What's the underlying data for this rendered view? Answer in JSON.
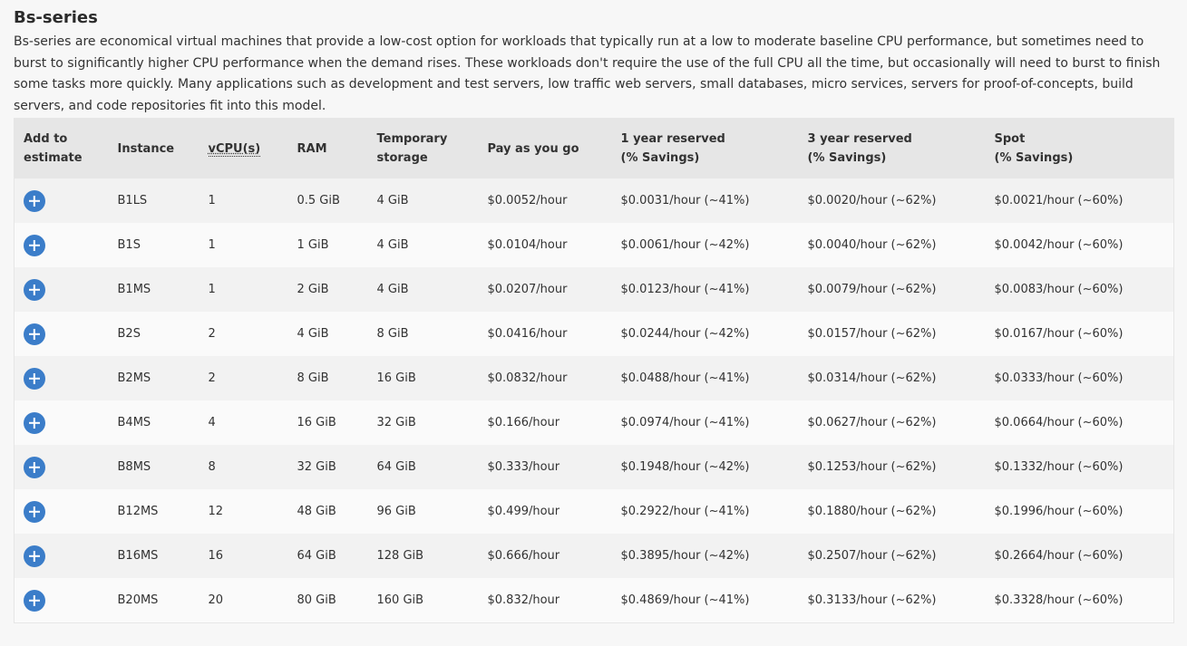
{
  "section": {
    "title": "Bs-series",
    "description": "Bs-series are economical virtual machines that provide a low-cost option for workloads that typically run at a low to moderate baseline CPU performance, but sometimes need to burst to significantly higher CPU performance when the demand rises. These workloads don't require the use of the full CPU all the time, but occasionally will need to burst to finish some tasks more quickly. Many applications such as development and test servers, low traffic web servers, small databases, micro services, servers for proof-of-concepts, build servers, and code repositories fit into this model."
  },
  "table": {
    "headers": {
      "add_line1": "Add to",
      "add_line2": "estimate",
      "instance": "Instance",
      "vcpu": "vCPU(s)",
      "ram": "RAM",
      "storage_line1": "Temporary",
      "storage_line2": "storage",
      "payg": "Pay as you go",
      "one_year_line1": "1 year reserved",
      "one_year_line2": "(% Savings)",
      "three_year_line1": "3 year reserved",
      "three_year_line2": "(% Savings)",
      "spot_line1": "Spot",
      "spot_line2": "(% Savings)"
    },
    "add_icon": "plus-circle-icon",
    "accent_color": "#3b7dc9",
    "rows": [
      {
        "instance": "B1LS",
        "vcpu": "1",
        "ram": "0.5 GiB",
        "storage": "4 GiB",
        "payg": "$0.0052/hour",
        "one_year": "$0.0031/hour (~41%)",
        "three_year": "$0.0020/hour (~62%)",
        "spot": "$0.0021/hour (~60%)"
      },
      {
        "instance": "B1S",
        "vcpu": "1",
        "ram": "1 GiB",
        "storage": "4 GiB",
        "payg": "$0.0104/hour",
        "one_year": "$0.0061/hour (~42%)",
        "three_year": "$0.0040/hour (~62%)",
        "spot": "$0.0042/hour (~60%)"
      },
      {
        "instance": "B1MS",
        "vcpu": "1",
        "ram": "2 GiB",
        "storage": "4 GiB",
        "payg": "$0.0207/hour",
        "one_year": "$0.0123/hour (~41%)",
        "three_year": "$0.0079/hour (~62%)",
        "spot": "$0.0083/hour (~60%)"
      },
      {
        "instance": "B2S",
        "vcpu": "2",
        "ram": "4 GiB",
        "storage": "8 GiB",
        "payg": "$0.0416/hour",
        "one_year": "$0.0244/hour (~42%)",
        "three_year": "$0.0157/hour (~62%)",
        "spot": "$0.0167/hour (~60%)"
      },
      {
        "instance": "B2MS",
        "vcpu": "2",
        "ram": "8 GiB",
        "storage": "16 GiB",
        "payg": "$0.0832/hour",
        "one_year": "$0.0488/hour (~41%)",
        "three_year": "$0.0314/hour (~62%)",
        "spot": "$0.0333/hour (~60%)"
      },
      {
        "instance": "B4MS",
        "vcpu": "4",
        "ram": "16 GiB",
        "storage": "32 GiB",
        "payg": "$0.166/hour",
        "one_year": "$0.0974/hour (~41%)",
        "three_year": "$0.0627/hour (~62%)",
        "spot": "$0.0664/hour (~60%)"
      },
      {
        "instance": "B8MS",
        "vcpu": "8",
        "ram": "32 GiB",
        "storage": "64 GiB",
        "payg": "$0.333/hour",
        "one_year": "$0.1948/hour (~42%)",
        "three_year": "$0.1253/hour (~62%)",
        "spot": "$0.1332/hour (~60%)"
      },
      {
        "instance": "B12MS",
        "vcpu": "12",
        "ram": "48 GiB",
        "storage": "96 GiB",
        "payg": "$0.499/hour",
        "one_year": "$0.2922/hour (~41%)",
        "three_year": "$0.1880/hour (~62%)",
        "spot": "$0.1996/hour (~60%)"
      },
      {
        "instance": "B16MS",
        "vcpu": "16",
        "ram": "64 GiB",
        "storage": "128 GiB",
        "payg": "$0.666/hour",
        "one_year": "$0.3895/hour (~42%)",
        "three_year": "$0.2507/hour (~62%)",
        "spot": "$0.2664/hour (~60%)"
      },
      {
        "instance": "B20MS",
        "vcpu": "20",
        "ram": "80 GiB",
        "storage": "160 GiB",
        "payg": "$0.832/hour",
        "one_year": "$0.4869/hour (~41%)",
        "three_year": "$0.3133/hour (~62%)",
        "spot": "$0.3328/hour (~60%)"
      }
    ]
  }
}
